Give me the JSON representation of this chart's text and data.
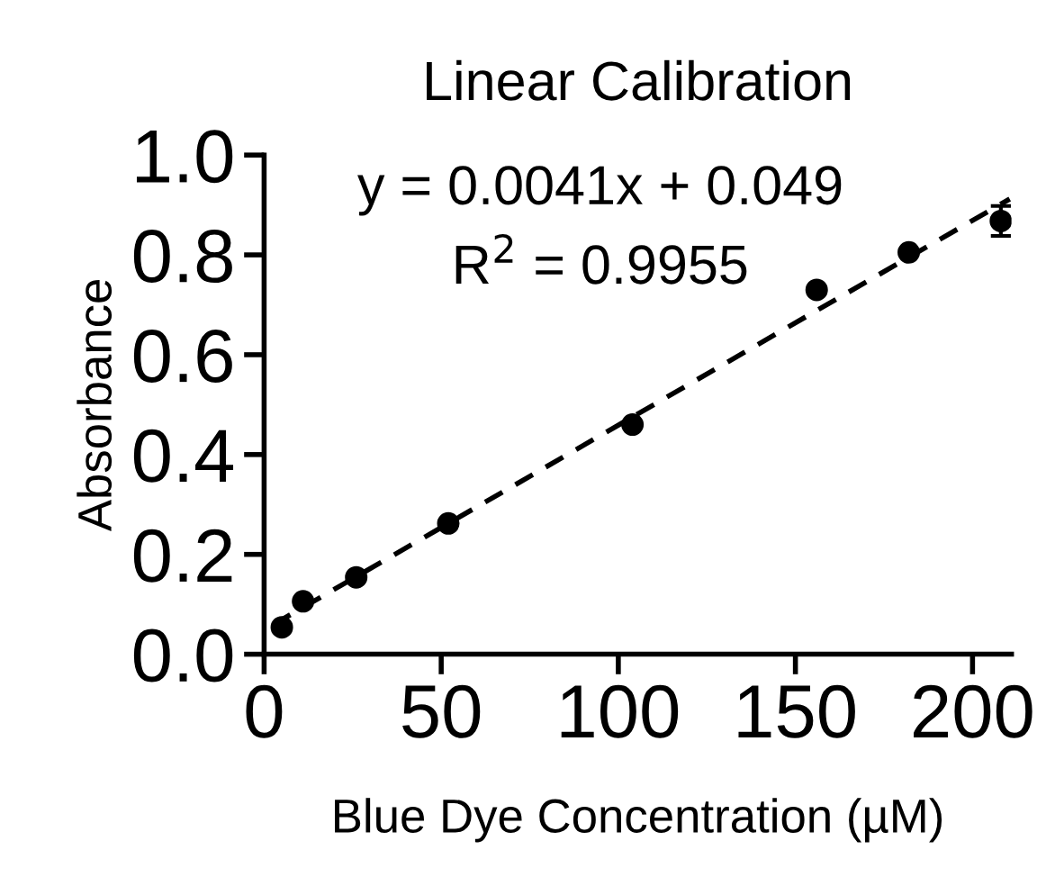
{
  "chart_data": {
    "type": "scatter",
    "title": "Linear Calibration",
    "xlabel": "Blue Dye Concentration (µM)",
    "ylabel": "Absorbance",
    "annotations": [
      "y = 0.0041x + 0.049",
      "R$^{2}$ = 0.9955"
    ],
    "xlim": [
      0,
      211
    ],
    "ylim": [
      0,
      1.0
    ],
    "xticks": [
      0,
      50,
      100,
      150,
      200
    ],
    "yticks": [
      {
        "value": 0,
        "label": "0.0"
      },
      0.2,
      0.4,
      0.6,
      0.8,
      {
        "value": 1,
        "label": "1.0"
      }
    ],
    "grid": false,
    "legend": false,
    "marker": "circle",
    "series": [
      {
        "color": "#000000",
        "x": [
          5,
          11,
          26,
          52,
          104,
          156,
          182,
          208
        ],
        "values": [
          0.054,
          0.106,
          0.154,
          0.262,
          0.46,
          0.73,
          0.805,
          0.868
        ],
        "errors": [
          null,
          null,
          null,
          null,
          null,
          null,
          null,
          0.03
        ]
      },
      {
        "type": "line",
        "color": "#000000",
        "line_style": "dashed",
        "marker": "none",
        "x": [
          2.5,
          210.5
        ],
        "values": [
          0.059,
          0.912
        ]
      }
    ]
  }
}
